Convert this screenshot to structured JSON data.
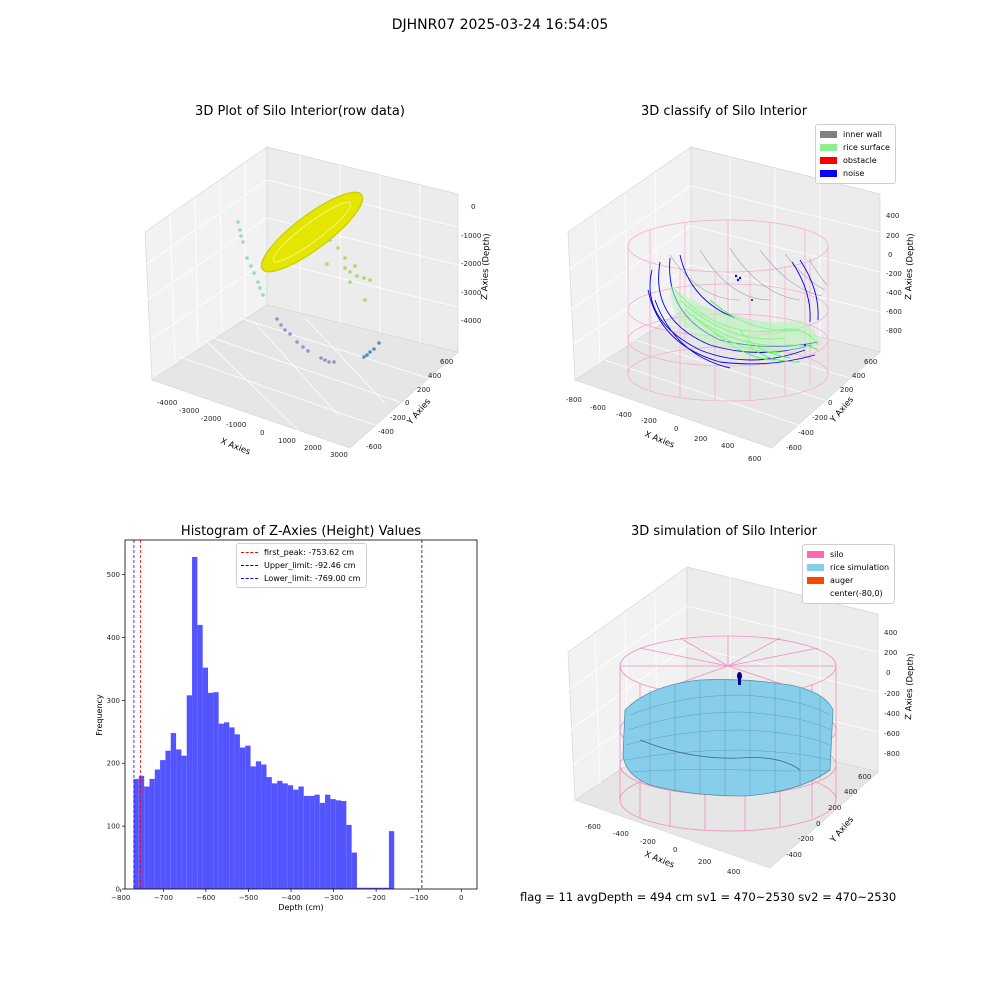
{
  "figure": {
    "title": "DJHNR07 2025-03-24 16:54:05"
  },
  "status": {
    "text": "flag = 11   avgDepth = 494 cm  sv1 = 470~2530  sv2 = 470~2530"
  },
  "chart_data": [
    {
      "type": "scatter3d",
      "title": "3D Plot of Silo Interior(row data)",
      "xlabel": "X Axies",
      "ylabel": "Y Axies",
      "zlabel": "Z Axies (Depth)",
      "x_ticks": [
        "-4000",
        "-3000",
        "-2000",
        "-1000",
        "0",
        "1000",
        "2000",
        "3000"
      ],
      "y_ticks": [
        "-600",
        "-400",
        "-200",
        "0",
        "200",
        "400",
        "600"
      ],
      "z_ticks": [
        "0",
        "-1000",
        "-2000",
        "-3000",
        "-4000"
      ],
      "colors": {
        "surface": "#e4e600",
        "scatter": [
          "#8fd3c6",
          "#a8d86b",
          "#9f8fc6",
          "#5b8fb8"
        ]
      }
    },
    {
      "type": "wireframe3d",
      "title": "3D classify of Silo Interior",
      "xlabel": "X Axies",
      "ylabel": "Y Axies",
      "zlabel": "Z Axies (Depth)",
      "x_ticks": [
        "-800",
        "-600",
        "-400",
        "-200",
        "0",
        "200",
        "400",
        "600"
      ],
      "y_ticks": [
        "-600",
        "-400",
        "-200",
        "0",
        "200",
        "400",
        "600"
      ],
      "z_ticks": [
        "400",
        "200",
        "0",
        "-200",
        "-400",
        "-600",
        "-800"
      ],
      "legend": [
        {
          "label": "inner wall",
          "color": "#808080"
        },
        {
          "label": "rice surface",
          "color": "#90ee90"
        },
        {
          "label": "obstacle",
          "color": "#ff0000"
        },
        {
          "label": "noise",
          "color": "#0000ff"
        }
      ]
    },
    {
      "type": "bar",
      "title": "Histogram of Z-Axies (Height) Values",
      "xlabel": "Depth (cm)",
      "ylabel": "Frequency",
      "xlim": [
        -790,
        37
      ],
      "ylim": [
        0,
        555
      ],
      "x_ticks": [
        -800,
        -700,
        -600,
        -500,
        -400,
        -300,
        -200,
        -100,
        0
      ],
      "y_ticks": [
        0,
        100,
        200,
        300,
        400,
        500
      ],
      "bin_start": -770,
      "bin_width": 12.5,
      "values": [
        175,
        180,
        163,
        175,
        190,
        205,
        220,
        248,
        222,
        212,
        308,
        528,
        420,
        352,
        312,
        313,
        263,
        265,
        257,
        246,
        225,
        228,
        195,
        203,
        198,
        178,
        168,
        172,
        168,
        165,
        158,
        163,
        148,
        148,
        150,
        137,
        150,
        143,
        141,
        140,
        102,
        58,
        2,
        2,
        2,
        2,
        2,
        2,
        92
      ],
      "bar_color": "#4b4bff",
      "lines": [
        {
          "label": "first_peak: -753.62 cm",
          "x": -753.62,
          "color": "#ff0000"
        },
        {
          "label": "Upper_limit: -92.46 cm",
          "x": -92.46,
          "color": "#000080"
        },
        {
          "label": "Lower_limit: -769.00 cm",
          "x": -769.0,
          "color": "#0000ff"
        }
      ]
    },
    {
      "type": "surface3d",
      "title": "3D simulation of Silo Interior",
      "xlabel": "X Axies",
      "ylabel": "Y Axies",
      "zlabel": "Z Axies (Depth)",
      "x_ticks": [
        "-600",
        "-400",
        "-200",
        "0",
        "200",
        "400"
      ],
      "y_ticks": [
        "-400",
        "-200",
        "0",
        "200",
        "400",
        "600"
      ],
      "z_ticks": [
        "400",
        "200",
        "0",
        "-200",
        "-400",
        "-600",
        "-800"
      ],
      "legend": [
        {
          "label": "silo",
          "color": "#ff69b4"
        },
        {
          "label": "rice simulation",
          "color": "#87ceeb"
        },
        {
          "label": "auger",
          "color": "#ff4500"
        },
        {
          "label": "center(-80,0)",
          "color": "#ffffff"
        }
      ]
    }
  ]
}
